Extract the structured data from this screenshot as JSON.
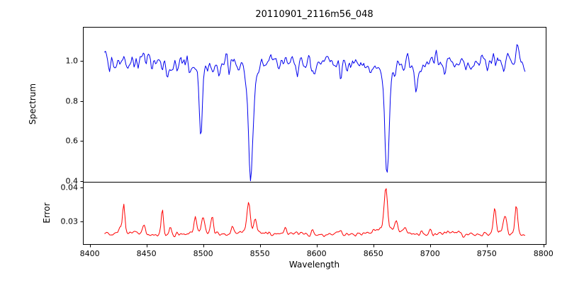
{
  "title": "20110901_2116m56_048",
  "chart_data": {
    "type": "line",
    "title": "20110901_2116m56_048",
    "xlabel": "Wavelength",
    "legend": "none",
    "grid": false,
    "xlim": [
      8394,
      8802
    ],
    "x_range": [
      8413,
      8784
    ],
    "sample_step": 0.9,
    "noise_seed": 20110901,
    "x_ticks": {
      "values": [
        8400,
        8450,
        8500,
        8550,
        8600,
        8650,
        8700,
        8750,
        8800
      ],
      "labels": [
        "8400",
        "8450",
        "8500",
        "8550",
        "8600",
        "8650",
        "8700",
        "8750",
        "8800"
      ]
    },
    "panels": [
      {
        "name": "spectrum",
        "ylabel": "Spectrum",
        "color": "#0000ee",
        "ylim": [
          0.397,
          1.169
        ],
        "y_ticks": {
          "values": [
            0.4,
            0.6,
            0.8,
            1.0
          ],
          "labels": [
            "0.4",
            "0.6",
            "0.8",
            "1.0"
          ]
        },
        "baseline": 0.995,
        "noise_sigma": 0.021,
        "wiggle_amp": 0.006,
        "absorption_lines": [
          {
            "center": 8498,
            "depth": 0.3,
            "sigma": 1.3
          },
          {
            "center": 8498,
            "depth": 0.06,
            "sigma": 4.0
          },
          {
            "center": 8542,
            "depth": 0.47,
            "sigma": 1.8
          },
          {
            "center": 8542,
            "depth": 0.1,
            "sigma": 5.0
          },
          {
            "center": 8662,
            "depth": 0.46,
            "sigma": 1.7
          },
          {
            "center": 8662,
            "depth": 0.09,
            "sigma": 5.0
          },
          {
            "center": 8433,
            "depth": 0.05,
            "sigma": 1.0
          },
          {
            "center": 8468,
            "depth": 0.09,
            "sigma": 1.0
          },
          {
            "center": 8514,
            "depth": 0.08,
            "sigma": 1.0
          },
          {
            "center": 8523,
            "depth": 0.06,
            "sigma": 1.0
          },
          {
            "center": 8583,
            "depth": 0.06,
            "sigma": 1.0
          },
          {
            "center": 8598,
            "depth": 0.05,
            "sigma": 1.0
          },
          {
            "center": 8621,
            "depth": 0.06,
            "sigma": 1.0
          },
          {
            "center": 8648,
            "depth": 0.05,
            "sigma": 1.0
          },
          {
            "center": 8688,
            "depth": 0.13,
            "sigma": 1.3
          },
          {
            "center": 8713,
            "depth": 0.07,
            "sigma": 1.0
          },
          {
            "center": 8736,
            "depth": 0.06,
            "sigma": 1.0
          }
        ],
        "emission_spikes": [
          {
            "center": 8768,
            "height": 0.09,
            "sigma": 0.9
          },
          {
            "center": 8777,
            "height": 0.13,
            "sigma": 1.0
          }
        ]
      },
      {
        "name": "error",
        "ylabel": "Error",
        "color": "#ff0000",
        "ylim": [
          0.02333,
          0.04167
        ],
        "y_ticks": {
          "values": [
            0.03,
            0.04
          ],
          "labels": [
            "0.03",
            "0.04"
          ]
        },
        "baseline": 0.0262,
        "noise_sigma": 0.00032,
        "wiggle_amp": 0.0003,
        "peaks": [
          {
            "center": 8427,
            "height": 0.002,
            "sigma": 1.5
          },
          {
            "center": 8430,
            "height": 0.0085,
            "sigma": 1.0
          },
          {
            "center": 8448,
            "height": 0.0025,
            "sigma": 1.2
          },
          {
            "center": 8464,
            "height": 0.008,
            "sigma": 1.0
          },
          {
            "center": 8471,
            "height": 0.002,
            "sigma": 1.0
          },
          {
            "center": 8493,
            "height": 0.0045,
            "sigma": 1.2
          },
          {
            "center": 8500,
            "height": 0.005,
            "sigma": 1.2
          },
          {
            "center": 8500,
            "height": 0.0012,
            "sigma": 8.0
          },
          {
            "center": 8508,
            "height": 0.0045,
            "sigma": 1.2
          },
          {
            "center": 8526,
            "height": 0.002,
            "sigma": 1.0
          },
          {
            "center": 8540,
            "height": 0.009,
            "sigma": 1.3
          },
          {
            "center": 8540,
            "height": 0.001,
            "sigma": 6.0
          },
          {
            "center": 8546,
            "height": 0.0035,
            "sigma": 1.2
          },
          {
            "center": 8572,
            "height": 0.0015,
            "sigma": 1.0
          },
          {
            "center": 8596,
            "height": 0.001,
            "sigma": 1.0
          },
          {
            "center": 8620,
            "height": 0.0012,
            "sigma": 1.5
          },
          {
            "center": 8655,
            "height": 0.0018,
            "sigma": 10.0
          },
          {
            "center": 8661,
            "height": 0.0125,
            "sigma": 1.4
          },
          {
            "center": 8670,
            "height": 0.003,
            "sigma": 1.2
          },
          {
            "center": 8678,
            "height": 0.002,
            "sigma": 1.0
          },
          {
            "center": 8700,
            "height": 0.0012,
            "sigma": 1.0
          },
          {
            "center": 8725,
            "height": 0.001,
            "sigma": 1.0
          },
          {
            "center": 8757,
            "height": 0.0075,
            "sigma": 1.2
          },
          {
            "center": 8766,
            "height": 0.0055,
            "sigma": 1.3
          },
          {
            "center": 8767,
            "height": 0.001,
            "sigma": 8.0
          },
          {
            "center": 8776,
            "height": 0.008,
            "sigma": 1.2
          }
        ]
      }
    ]
  }
}
